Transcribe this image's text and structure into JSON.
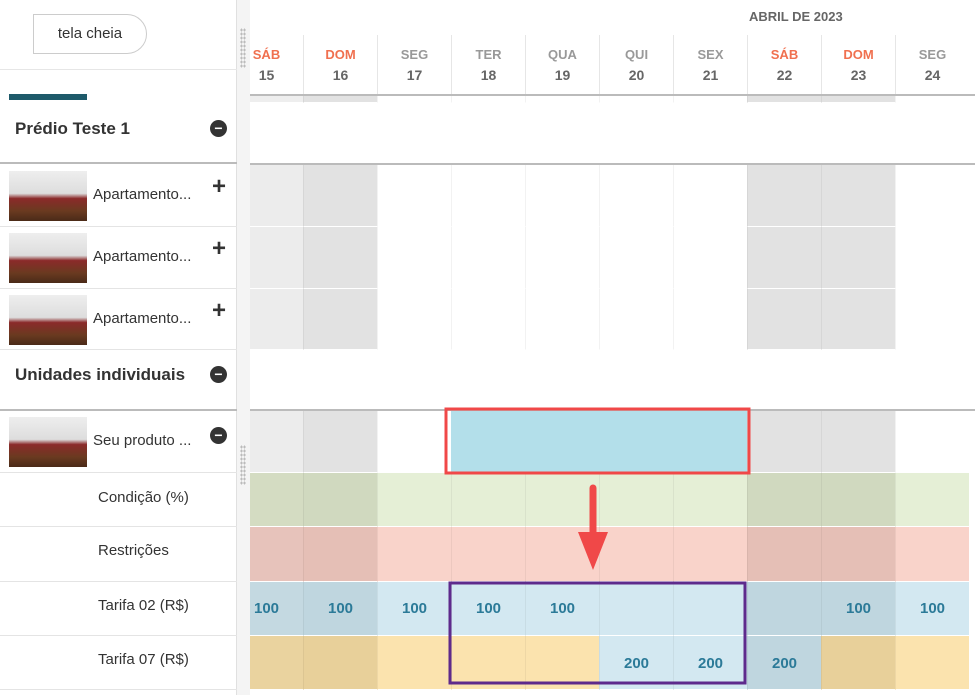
{
  "toolbar": {
    "fullscreen_label": "tela cheia"
  },
  "calendar": {
    "month": "ABRIL DE 2023",
    "days": [
      {
        "name": "SÁB",
        "num": "15",
        "weekend": true
      },
      {
        "name": "DOM",
        "num": "16",
        "weekend": true
      },
      {
        "name": "SEG",
        "num": "17",
        "weekend": false
      },
      {
        "name": "TER",
        "num": "18",
        "weekend": false
      },
      {
        "name": "QUA",
        "num": "19",
        "weekend": false
      },
      {
        "name": "QUI",
        "num": "20",
        "weekend": false
      },
      {
        "name": "SEX",
        "num": "21",
        "weekend": false
      },
      {
        "name": "SÁB",
        "num": "22",
        "weekend": true
      },
      {
        "name": "DOM",
        "num": "23",
        "weekend": true
      },
      {
        "name": "SEG",
        "num": "24",
        "weekend": false
      }
    ]
  },
  "sidebar": {
    "group1": {
      "title": "Prédio Teste 1",
      "units": [
        "Apartamento...",
        "Apartamento...",
        "Apartamento..."
      ]
    },
    "group2": {
      "title": "Unidades individuais",
      "product": "Seu produto ...",
      "rows": [
        "Condição (%)",
        "Restrições",
        "Tarifa 02 (R$)",
        "Tarifa 07 (R$)"
      ]
    }
  },
  "rates": {
    "tarifa02": [
      "100",
      "100",
      "100",
      "100",
      "100",
      "",
      "",
      "",
      "100",
      "100"
    ],
    "tarifa07": [
      "",
      "",
      "",
      "",
      "",
      "200",
      "200",
      "200",
      "",
      ""
    ]
  },
  "colors": {
    "weekend_header": "#f0704f",
    "booking": "#b3dfea",
    "highlight_red": "#f04848",
    "highlight_purple": "#5e2a8c",
    "arrow": "#f04848"
  }
}
